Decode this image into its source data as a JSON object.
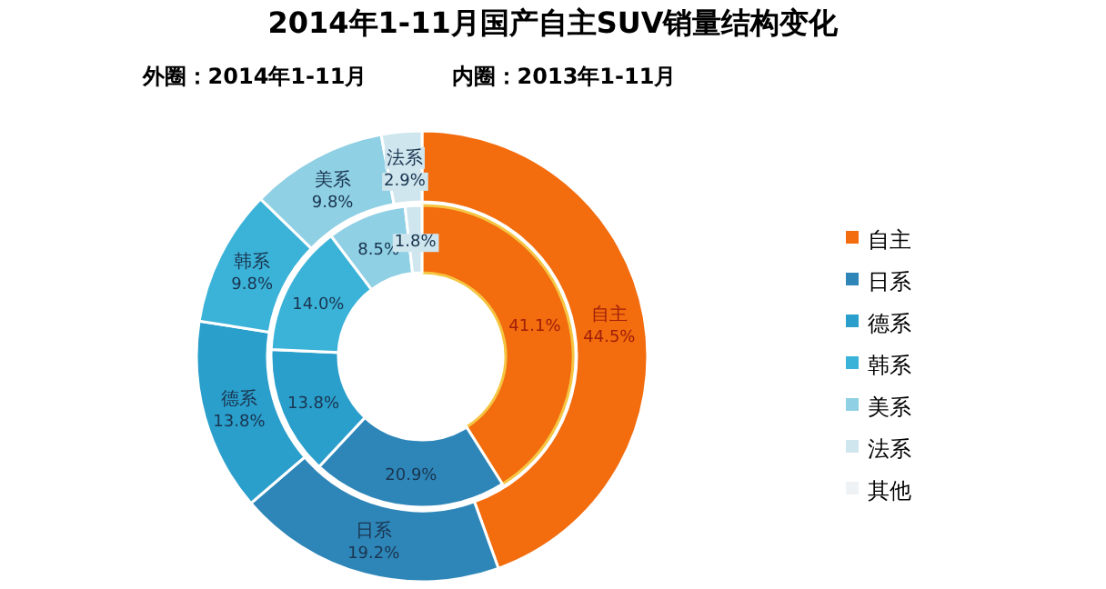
{
  "chart_data": {
    "type": "donut",
    "title": "2014年1-11月国产自主SUV销量结构变化",
    "annotations": [
      "外圈：2014年1-11月",
      "内圈：2013年1-11月"
    ],
    "categories": [
      "自主",
      "日系",
      "德系",
      "韩系",
      "美系",
      "法系",
      "其他"
    ],
    "colors": [
      "#f36c0e",
      "#2e86b8",
      "#2a9fcc",
      "#3bb3d8",
      "#8fd0e4",
      "#cfe6ee",
      "#eef2f4"
    ],
    "series": [
      {
        "values": [
          44.5,
          19.2,
          13.8,
          9.8,
          9.8,
          2.9,
          0
        ],
        "value_labels": [
          "44.5%",
          "19.2%",
          "13.8%",
          "9.8%",
          "9.8%",
          "2.9%",
          null
        ]
      },
      {
        "values": [
          41.1,
          20.9,
          13.8,
          14.0,
          8.5,
          1.8,
          0
        ],
        "value_labels": [
          "41.1%",
          "20.9%",
          "13.8%",
          "14.0%",
          "8.5%",
          "1.8%",
          null
        ]
      }
    ],
    "legend": "right"
  }
}
